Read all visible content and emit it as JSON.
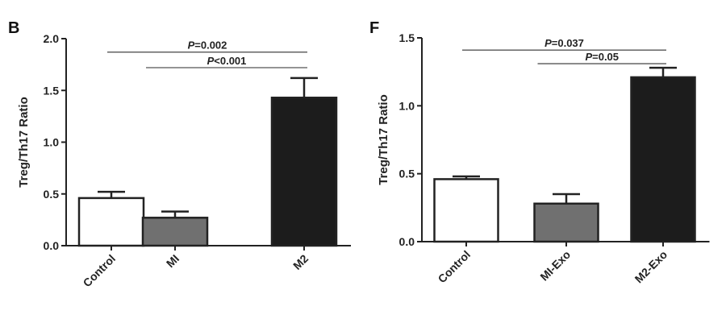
{
  "chart_data": [
    {
      "panel": "B",
      "type": "bar",
      "categories": [
        "Control",
        "MI",
        "M2"
      ],
      "values": [
        0.46,
        0.27,
        1.43
      ],
      "errors": [
        0.06,
        0.06,
        0.19
      ],
      "bar_colors": [
        "#ffffff",
        "#707070",
        "#1c1c1c"
      ],
      "ylabel": "Treg/Th17 Ratio",
      "ylim": [
        0,
        2.0
      ],
      "yticks": [
        "0.0",
        "0.5",
        "1.0",
        "1.5",
        "2.0"
      ],
      "ytick_values": [
        0,
        0.5,
        1.0,
        1.5,
        2.0
      ],
      "comparisons": [
        {
          "from": 0,
          "to": 2,
          "label_italic": "P",
          "label_rest": "=0.002",
          "y": 1.87
        },
        {
          "from": 1,
          "to": 2,
          "label_italic": "P",
          "label_rest": "<0.001",
          "y": 1.72
        }
      ]
    },
    {
      "panel": "F",
      "type": "bar",
      "categories": [
        "Control",
        "MI-Exo",
        "M2-Exo"
      ],
      "values": [
        0.46,
        0.28,
        1.21
      ],
      "errors": [
        0.02,
        0.07,
        0.07
      ],
      "bar_colors": [
        "#ffffff",
        "#707070",
        "#1c1c1c"
      ],
      "ylabel": "Treg/Th17 Ratio",
      "ylim": [
        0,
        1.5
      ],
      "yticks": [
        "0.0",
        "0.5",
        "1.0",
        "1.5"
      ],
      "ytick_values": [
        0,
        0.5,
        1.0,
        1.5
      ],
      "comparisons": [
        {
          "from": 0,
          "to": 2,
          "label_italic": "P",
          "label_rest": "=0.037",
          "y": 1.41
        },
        {
          "from": 1,
          "to": 2,
          "label_italic": "P",
          "label_rest": "=0.05",
          "y": 1.31
        }
      ]
    }
  ]
}
